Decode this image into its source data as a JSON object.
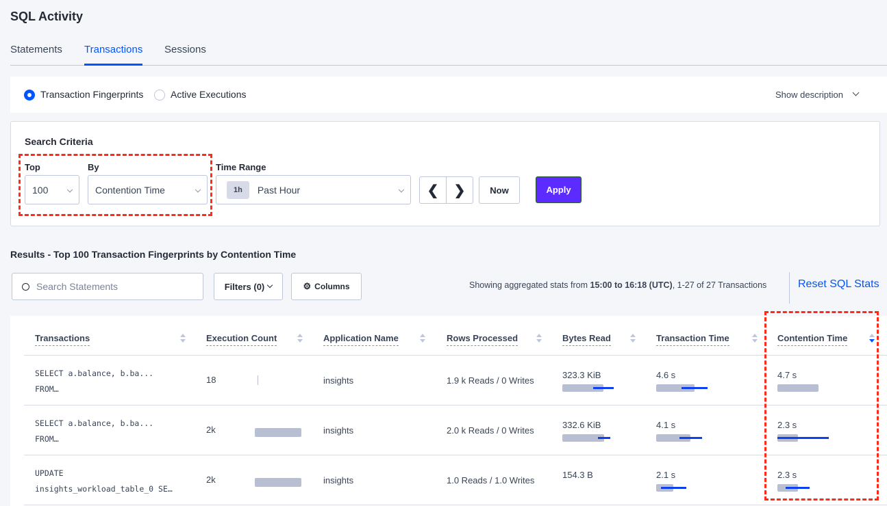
{
  "header": {
    "title": "SQL Activity"
  },
  "tabs": [
    {
      "label": "Statements"
    },
    {
      "label": "Transactions",
      "active": true
    },
    {
      "label": "Sessions"
    }
  ],
  "view": {
    "options": [
      {
        "label": "Transaction Fingerprints",
        "selected": true
      },
      {
        "label": "Active Executions",
        "selected": false
      }
    ],
    "show_description": "Show description"
  },
  "criteria": {
    "title": "Search Criteria",
    "top_label": "Top",
    "top_value": "100",
    "by_label": "By",
    "by_value": "Contention Time",
    "time_label": "Time Range",
    "time_badge": "1h",
    "time_value": "Past Hour",
    "now": "Now",
    "apply": "Apply"
  },
  "results": {
    "title": "Results - Top 100 Transaction Fingerprints by Contention Time",
    "search_placeholder": "Search Statements",
    "filters": "Filters (0)",
    "columns": "Columns",
    "stats_prefix": "Showing aggregated stats from ",
    "stats_range": "15:00 to 16:18 (UTC)",
    "stats_suffix": ", 1-27 of 27 Transactions",
    "reset": "Reset SQL Stats"
  },
  "table": {
    "columns": [
      "Transactions",
      "Execution Count",
      "Application Name",
      "Rows Processed",
      "Bytes Read",
      "Transaction Time",
      "Contention Time"
    ],
    "sorted_column": "Contention Time",
    "sort_direction": "descending",
    "rows": [
      {
        "txn1": "SELECT a.balance, b.ba...",
        "txn2": "FROM…",
        "exec": "18",
        "app": "insights",
        "rows": "1.9 k Reads / 0 Writes",
        "bytes": "323.3 KiB",
        "time": "4.6 s",
        "contention": "4.7 s"
      },
      {
        "txn1": "SELECT a.balance, b.ba...",
        "txn2": "FROM…",
        "exec": "2k",
        "app": "insights",
        "rows": "2.0 k Reads / 0 Writes",
        "bytes": "332.6 KiB",
        "time": "4.1 s",
        "contention": "2.3 s"
      },
      {
        "txn1": "UPDATE",
        "txn2": "insights_workload_table_0 SE…",
        "exec": "2k",
        "app": "insights",
        "rows": "1.0 Reads / 1.0 Writes",
        "bytes": "154.3 B",
        "time": "2.1 s",
        "contention": "2.3 s"
      }
    ]
  },
  "colors": {
    "accent": "#0055ff",
    "apply": "#5b2bff",
    "highlight": "#ff2a1a"
  }
}
